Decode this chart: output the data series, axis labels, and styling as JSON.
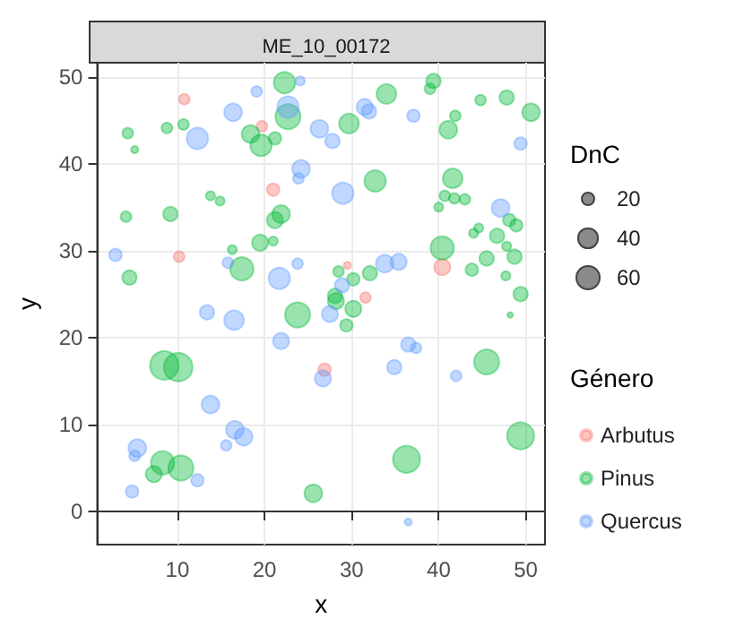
{
  "chart_data": {
    "type": "bubble",
    "title": "ME_10_00172",
    "xlabel": "x",
    "ylabel": "y",
    "legend_title": "Género",
    "annotations": [
      "DnC"
    ],
    "size_legend": [
      20,
      40,
      60
    ],
    "xlim": [
      0.8,
      52.2
    ],
    "ylim": [
      -3.8,
      51.6
    ],
    "xticks": [
      10,
      20,
      30,
      40,
      50
    ],
    "yticks": [
      0,
      10,
      20,
      30,
      40,
      50
    ],
    "grid": true,
    "legend": "right",
    "marker": "circle",
    "series": [
      {
        "name": "Arbutus",
        "color": "#f8766d",
        "x": [
          10.8,
          19.7,
          21.0,
          10.2,
          40.4,
          29.5,
          31.6,
          26.9
        ],
        "values": [
          47.4,
          44.3,
          37.0,
          29.3,
          28.1,
          28.3,
          24.6,
          16.3
        ],
        "sizes": [
          11,
          11,
          15,
          11,
          25,
          5,
          11,
          15
        ]
      },
      {
        "name": "Pinus",
        "color": "#00ba38",
        "x": [
          4.3,
          5.1,
          8.8,
          10.7,
          18.4,
          19.6,
          21.2,
          22.3,
          22.7,
          13.8,
          14.9,
          4.1,
          9.2,
          21.9,
          21.2,
          19.5,
          21.0,
          16.3,
          17.4,
          4.5,
          34.0,
          39.4,
          39.0,
          29.7,
          44.8,
          47.8,
          50.6,
          41.9,
          41.1,
          32.7,
          41.6,
          40.7,
          41.8,
          43.0,
          40.0,
          48.1,
          48.9,
          44.0,
          44.6,
          46.7,
          47.8,
          48.7,
          45.5,
          47.7,
          49.4,
          40.4,
          43.8,
          32.1,
          30.2,
          28.5,
          28.1,
          48.2,
          28.2,
          30.2,
          29.4,
          23.8,
          45.5,
          49.4,
          36.3,
          25.6,
          8.5,
          10.1,
          8.3,
          10.4,
          7.3
        ],
        "values": [
          43.5,
          41.6,
          44.1,
          44.5,
          43.4,
          42.1,
          42.9,
          49.3,
          45.4,
          36.3,
          35.7,
          33.9,
          34.2,
          34.2,
          33.5,
          30.9,
          31.1,
          30.1,
          27.9,
          26.9,
          48.0,
          49.5,
          48.6,
          44.6,
          47.3,
          47.6,
          45.9,
          45.5,
          43.9,
          38.0,
          38.3,
          36.3,
          36.0,
          35.9,
          35.0,
          33.5,
          32.9,
          32.0,
          32.6,
          31.7,
          30.5,
          29.3,
          29.1,
          27.1,
          25.0,
          30.3,
          27.8,
          27.4,
          26.7,
          27.6,
          24.8,
          22.6,
          24.2,
          23.3,
          21.4,
          22.6,
          17.2,
          8.7,
          6.0,
          2.1,
          16.8,
          16.6,
          5.6,
          5.0,
          4.3
        ],
        "sizes": [
          11,
          5,
          11,
          11,
          30,
          44,
          15,
          44,
          60,
          8,
          8,
          11,
          20,
          30,
          25,
          25,
          8,
          8,
          52,
          20,
          37,
          20,
          11,
          37,
          11,
          20,
          30,
          11,
          30,
          44,
          37,
          11,
          11,
          11,
          8,
          15,
          15,
          8,
          8,
          20,
          8,
          20,
          20,
          8,
          20,
          52,
          15,
          20,
          15,
          11,
          20,
          3,
          25,
          25,
          15,
          60,
          60,
          70,
          70,
          30,
          78,
          78,
          52,
          60,
          25
        ]
      },
      {
        "name": "Quercus",
        "color": "#619cff",
        "x": [
          19.1,
          16.4,
          12.3,
          22.7,
          2.9,
          15.8,
          21.7,
          24.1,
          31.5,
          32.0,
          37.1,
          26.3,
          27.8,
          49.4,
          24.2,
          23.9,
          29.0,
          47.1,
          23.8,
          33.8,
          35.4,
          28.9,
          27.5,
          21.9,
          26.7,
          36.5,
          37.4,
          34.9,
          42.0,
          36.5,
          13.4,
          16.5,
          13.8,
          16.6,
          17.6,
          15.6,
          5.4,
          5.1,
          12.3,
          4.8
        ],
        "values": [
          48.3,
          45.9,
          42.9,
          46.5,
          29.5,
          28.6,
          26.8,
          49.5,
          46.5,
          46.0,
          45.5,
          44.0,
          42.6,
          42.3,
          39.4,
          38.3,
          36.6,
          34.9,
          28.5,
          28.5,
          28.7,
          26.0,
          22.7,
          19.6,
          15.3,
          19.2,
          18.8,
          16.6,
          15.6,
          -1.2,
          22.9,
          22.0,
          12.3,
          9.4,
          8.6,
          7.6,
          7.3,
          6.4,
          3.6,
          2.3
        ],
        "sizes": [
          11,
          30,
          44,
          44,
          15,
          11,
          44,
          8,
          25,
          20,
          15,
          30,
          20,
          15,
          30,
          11,
          44,
          30,
          11,
          30,
          25,
          20,
          25,
          25,
          25,
          20,
          11,
          20,
          11,
          5,
          20,
          37,
          30,
          30,
          30,
          11,
          30,
          11,
          15,
          15
        ]
      }
    ]
  }
}
